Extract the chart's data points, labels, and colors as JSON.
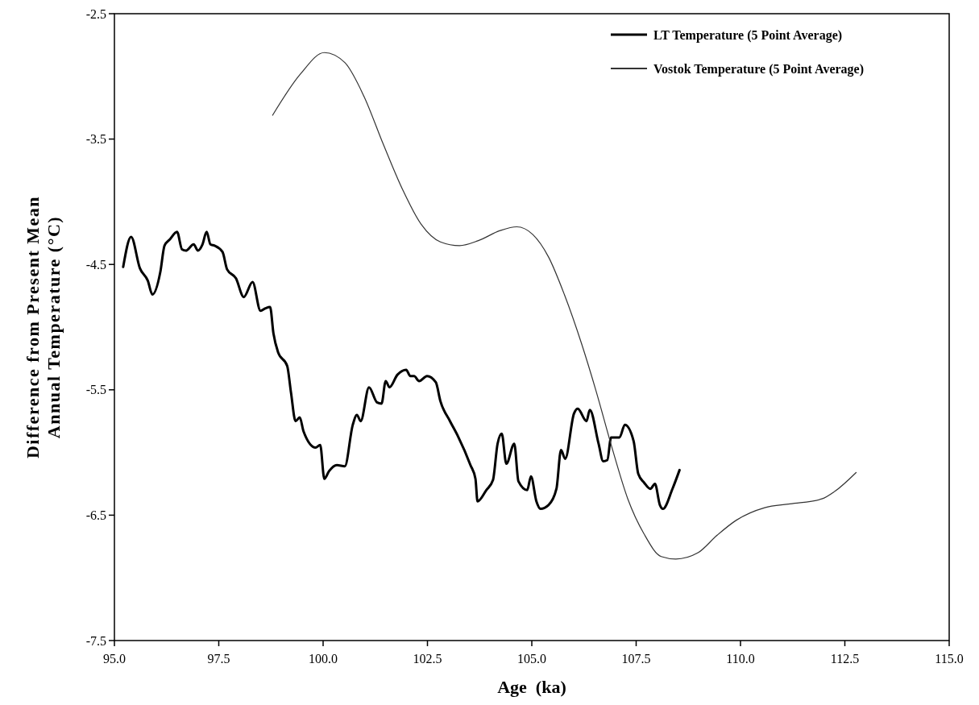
{
  "chart_data": {
    "type": "line",
    "xlabel": "Age  (ka)",
    "ylabel": "Difference from Present Mean\nAnnual Temperature (°C)",
    "xlim": [
      95,
      115
    ],
    "ylim": [
      -7.5,
      -2.5
    ],
    "xticks": [
      {
        "value": 95,
        "label": "95.0"
      },
      97.5,
      {
        "value": 100,
        "label": "100.0"
      },
      102.5,
      {
        "value": 105,
        "label": "105.0"
      },
      107.5,
      {
        "value": 110,
        "label": "110.0"
      },
      112.5,
      {
        "value": 115,
        "label": "115.0"
      }
    ],
    "yticks": [
      -7.5,
      -6.5,
      -5.5,
      -4.5,
      -3.5,
      -2.5
    ],
    "grid": false,
    "legend": "top right",
    "line_style": "solid",
    "marker": "none",
    "series": [
      {
        "name": "LT Temperature (5 Point Average)",
        "color": "#000000",
        "x": [
          95.21,
          95.4,
          95.61,
          95.8,
          95.91,
          96.1,
          96.2,
          96.33,
          96.5,
          96.62,
          96.71,
          96.9,
          97.0,
          97.11,
          97.21,
          97.3,
          97.4,
          97.59,
          97.7,
          97.91,
          98.1,
          98.31,
          98.5,
          98.62,
          98.73,
          98.81,
          98.92,
          99.14,
          99.23,
          99.34,
          99.44,
          99.53,
          99.82,
          99.93,
          100.03,
          100.14,
          100.33,
          100.52,
          100.71,
          100.81,
          100.9,
          101.1,
          101.29,
          101.4,
          101.5,
          101.59,
          101.78,
          101.99,
          102.09,
          102.18,
          102.3,
          102.49,
          102.7,
          102.81,
          103.04,
          103.23,
          103.53,
          103.65,
          103.7,
          103.91,
          104.07,
          104.18,
          104.28,
          104.39,
          104.58,
          104.68,
          104.89,
          104.98,
          105.11,
          105.21,
          105.4,
          105.59,
          105.7,
          105.8,
          106.01,
          106.1,
          106.31,
          106.39,
          106.6,
          106.71,
          106.81,
          106.9,
          107.1,
          107.23,
          107.44,
          107.55,
          107.69,
          107.84,
          107.95,
          108.07,
          108.14,
          108.37,
          108.54
        ],
        "values": [
          -4.52,
          -4.28,
          -4.53,
          -4.63,
          -4.74,
          -4.56,
          -4.35,
          -4.3,
          -4.24,
          -4.38,
          -4.39,
          -4.34,
          -4.39,
          -4.34,
          -4.24,
          -4.34,
          -4.35,
          -4.4,
          -4.54,
          -4.61,
          -4.76,
          -4.64,
          -4.87,
          -4.85,
          -4.84,
          -5.05,
          -5.2,
          -5.31,
          -5.52,
          -5.75,
          -5.72,
          -5.83,
          -5.96,
          -5.94,
          -6.21,
          -6.15,
          -6.1,
          -6.11,
          -5.78,
          -5.7,
          -5.75,
          -5.48,
          -5.6,
          -5.61,
          -5.43,
          -5.48,
          -5.38,
          -5.34,
          -5.39,
          -5.39,
          -5.43,
          -5.39,
          -5.44,
          -5.59,
          -5.75,
          -5.87,
          -6.1,
          -6.21,
          -6.39,
          -6.3,
          -6.22,
          -5.93,
          -5.85,
          -6.09,
          -5.93,
          -6.23,
          -6.3,
          -6.19,
          -6.39,
          -6.45,
          -6.42,
          -6.29,
          -5.98,
          -6.05,
          -5.69,
          -5.65,
          -5.75,
          -5.66,
          -5.93,
          -6.07,
          -6.06,
          -5.88,
          -5.88,
          -5.78,
          -5.91,
          -6.17,
          -6.24,
          -6.29,
          -6.25,
          -6.42,
          -6.45,
          -6.29,
          -6.14
        ]
      },
      {
        "name": "Vostok Temperature (5 Point Average)",
        "color": "#333333",
        "x": [
          98.79,
          99.46,
          100.03,
          100.52,
          100.98,
          101.44,
          101.9,
          102.35,
          102.81,
          103.27,
          103.72,
          104.24,
          104.64,
          105.02,
          105.4,
          105.78,
          106.2,
          106.54,
          106.92,
          107.3,
          107.69,
          108.1,
          108.45,
          108.98,
          109.44,
          109.9,
          110.58,
          111.19,
          111.95,
          112.26,
          112.77
        ],
        "values": [
          -3.31,
          -2.98,
          -2.81,
          -2.89,
          -3.16,
          -3.54,
          -3.9,
          -4.18,
          -4.32,
          -4.35,
          -4.31,
          -4.23,
          -4.2,
          -4.26,
          -4.44,
          -4.74,
          -5.14,
          -5.51,
          -5.96,
          -6.37,
          -6.65,
          -6.83,
          -6.85,
          -6.8,
          -6.66,
          -6.54,
          -6.44,
          -6.41,
          -6.37,
          -6.31,
          -6.16
        ]
      }
    ]
  }
}
